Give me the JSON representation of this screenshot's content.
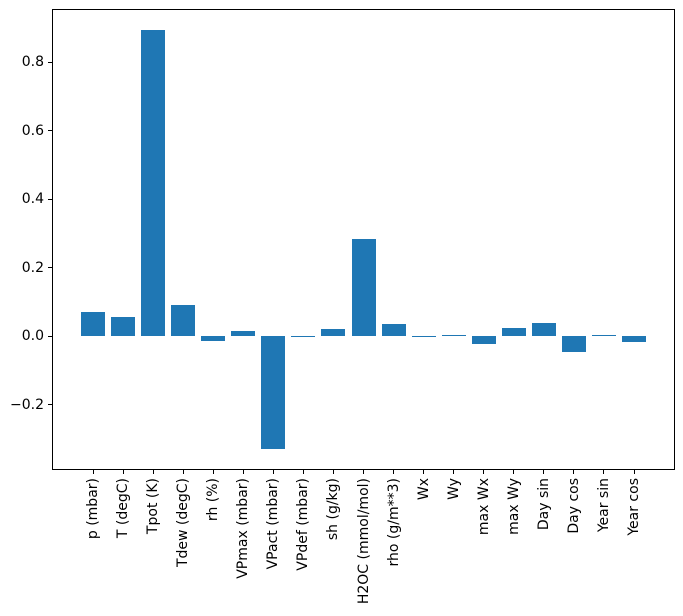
{
  "figure": {
    "background_color": "#ffffff",
    "axis_color": "#000000",
    "text_color": "#000000"
  },
  "chart_data": {
    "type": "bar",
    "bar_color": "#1f77b4",
    "categories": [
      "p (mbar)",
      "T (degC)",
      "Tpot (K)",
      "Tdew (degC)",
      "rh (%)",
      "VPmax (mbar)",
      "VPact (mbar)",
      "VPdef (mbar)",
      "sh (g/kg)",
      "H2OC (mmol/mol)",
      "rho (g/m**3)",
      "Wx",
      "Wy",
      "max Wx",
      "max Wy",
      "Day sin",
      "Day cos",
      "Year sin",
      "Year cos"
    ],
    "values": [
      0.07,
      0.057,
      0.895,
      0.091,
      -0.015,
      0.017,
      -0.33,
      -0.002,
      0.021,
      0.284,
      0.036,
      0.0005,
      0.0035,
      -0.022,
      0.025,
      0.04,
      -0.047,
      0.005,
      -0.017
    ],
    "ylim": [
      -0.39,
      0.955
    ],
    "yticks": [
      -0.2,
      0.0,
      0.2,
      0.4,
      0.6,
      0.8
    ],
    "ytick_labels": [
      "−0.2",
      "0.0",
      "0.2",
      "0.4",
      "0.6",
      "0.8"
    ],
    "xtick_rotation": 90,
    "grid": false,
    "legend": "none"
  }
}
